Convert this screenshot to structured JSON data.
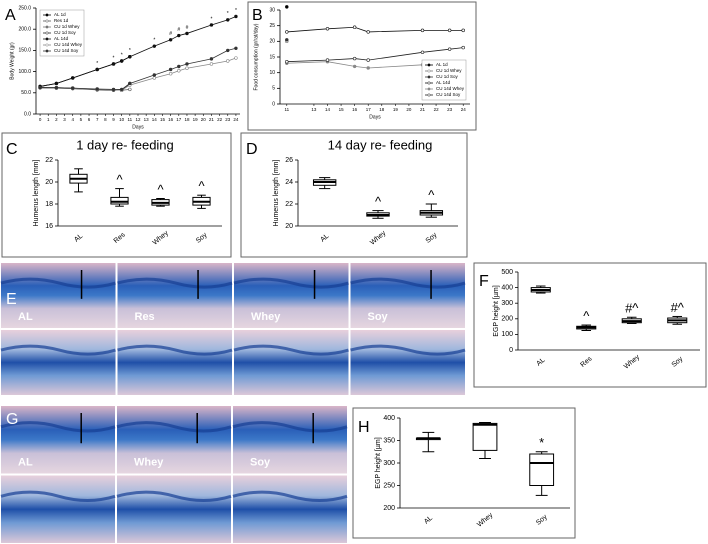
{
  "chart_data": [
    {
      "type": "line",
      "panel": "A",
      "ylabel": "Body Weight (gr)",
      "xlabel": "Days",
      "x": [
        0,
        2,
        4,
        7,
        9,
        10,
        11,
        14,
        16,
        17,
        18,
        21,
        23,
        24
      ],
      "xlim": [
        -0.5,
        24.5
      ],
      "xticks": [
        0,
        1,
        2,
        3,
        4,
        5,
        6,
        7,
        8,
        9,
        10,
        11,
        12,
        13,
        14,
        15,
        16,
        17,
        18,
        19,
        20,
        21,
        22,
        23,
        24
      ],
      "ylim": [
        0,
        250
      ],
      "yticks": [
        {
          "value": 0,
          "label": "0.0"
        },
        {
          "value": 50,
          "label": "50.0"
        },
        {
          "value": 100,
          "label": "100.0"
        },
        {
          "value": 150,
          "label": "150.0"
        },
        {
          "value": 200,
          "label": "200.0"
        },
        {
          "value": 250,
          "label": "250.0"
        }
      ],
      "legend": "upper left",
      "annotations": [
        null,
        null,
        null,
        "*",
        "*",
        "*",
        "*",
        "*",
        "#",
        "#",
        "#",
        "*",
        "*",
        "*"
      ],
      "series": [
        {
          "name": "AL 1d",
          "color": "#000000",
          "values": [
            65,
            72,
            85,
            105,
            118,
            125,
            135,
            null,
            null,
            null,
            null,
            null,
            null,
            null
          ]
        },
        {
          "name": "Res 1d",
          "color": "#555555",
          "values": [
            63,
            62,
            61,
            58,
            57,
            56,
            58,
            null,
            null,
            null,
            null,
            null,
            null,
            null
          ]
        },
        {
          "name": "CU 1d Whey",
          "color": "#777777",
          "values": [
            62,
            62,
            60,
            58,
            57,
            56,
            70,
            null,
            null,
            null,
            null,
            null,
            null,
            null
          ]
        },
        {
          "name": "CU 1d Soy",
          "color": "#222222",
          "values": [
            62,
            61,
            60,
            57,
            56,
            57,
            72,
            null,
            null,
            null,
            null,
            null,
            null,
            null
          ]
        },
        {
          "name": "AL 14d",
          "color": "#111111",
          "values": [
            65,
            72,
            85,
            105,
            118,
            125,
            135,
            160,
            175,
            185,
            190,
            210,
            222,
            230
          ]
        },
        {
          "name": "CU 14d Whey",
          "color": "#888888",
          "values": [
            62,
            61,
            60,
            58,
            57,
            56,
            68,
            85,
            95,
            102,
            108,
            118,
            125,
            132
          ]
        },
        {
          "name": "CU 14d Soy",
          "color": "#333333",
          "values": [
            62,
            62,
            61,
            59,
            58,
            58,
            72,
            92,
            105,
            112,
            118,
            130,
            150,
            155
          ]
        }
      ]
    },
    {
      "type": "line",
      "panel": "B",
      "ylabel": "Food consumption (gr/rat/day)",
      "xlabel": "Days",
      "x": [
        11,
        14,
        16,
        17,
        21,
        23,
        24
      ],
      "xlim": [
        10.5,
        24.5
      ],
      "xticks": [
        11,
        13,
        14,
        15,
        16,
        17,
        18,
        19,
        20,
        21,
        22,
        23,
        24
      ],
      "ylim": [
        0,
        30
      ],
      "yticks": [
        0,
        5,
        10,
        15,
        20,
        25,
        30
      ],
      "legend": "lower right",
      "series": [
        {
          "name": "AL 1d",
          "color": "#000000",
          "values": [
            31,
            null,
            null,
            null,
            null,
            null,
            null
          ]
        },
        {
          "name": "CU 1d Whey",
          "color": "#777777",
          "values": [
            20,
            null,
            null,
            null,
            null,
            null,
            null
          ]
        },
        {
          "name": "CU 1d Soy",
          "color": "#333333",
          "values": [
            20.5,
            null,
            null,
            null,
            null,
            null,
            null
          ]
        },
        {
          "name": "AL 14d",
          "color": "#111111",
          "values": [
            23,
            24,
            24.5,
            23,
            23.5,
            23.5,
            23.5
          ]
        },
        {
          "name": "CU 14d Whey",
          "color": "#888888",
          "values": [
            13,
            13.5,
            12,
            11.5,
            12.5,
            12.5,
            13.5
          ]
        },
        {
          "name": "CU 14d Soy",
          "color": "#222222",
          "values": [
            13.5,
            14,
            14.5,
            14,
            16.5,
            17.5,
            18
          ]
        }
      ]
    },
    {
      "type": "box",
      "panel": "C",
      "title": "1 day re- feeding",
      "ylabel": "Humerus length [mm]",
      "categories": [
        "AL",
        "Res",
        "Whey",
        "Soy"
      ],
      "ylim": [
        16,
        22
      ],
      "yticks": [
        16,
        18,
        20,
        22
      ],
      "annotations": [
        null,
        "^",
        "^",
        "^"
      ],
      "boxes": [
        {
          "min": 19.1,
          "q1": 19.9,
          "median": 20.3,
          "q3": 20.7,
          "max": 21.2
        },
        {
          "min": 17.8,
          "q1": 18.0,
          "median": 18.2,
          "q3": 18.6,
          "max": 19.4
        },
        {
          "min": 17.8,
          "q1": 17.9,
          "median": 18.1,
          "q3": 18.4,
          "max": 18.5
        },
        {
          "min": 17.6,
          "q1": 17.9,
          "median": 18.2,
          "q3": 18.6,
          "max": 18.8
        }
      ]
    },
    {
      "type": "box",
      "panel": "D",
      "title": "14 day re- feeding",
      "ylabel": "Humerus length [mm]",
      "categories": [
        "AL",
        "Whey",
        "Soy"
      ],
      "ylim": [
        20,
        26
      ],
      "yticks": [
        20,
        22,
        24,
        26
      ],
      "annotations": [
        null,
        "^",
        "^"
      ],
      "boxes": [
        {
          "min": 23.4,
          "q1": 23.7,
          "median": 24.0,
          "q3": 24.2,
          "max": 24.4
        },
        {
          "min": 20.7,
          "q1": 20.9,
          "median": 21.0,
          "q3": 21.2,
          "max": 21.4
        },
        {
          "min": 20.8,
          "q1": 21.0,
          "median": 21.2,
          "q3": 21.4,
          "max": 22.0
        }
      ]
    },
    {
      "type": "box",
      "panel": "F",
      "ylabel": "EGP height [µm]",
      "categories": [
        "AL",
        "Res",
        "Whey",
        "Soy"
      ],
      "ylim": [
        0,
        500
      ],
      "yticks": [
        0,
        100,
        200,
        300,
        400,
        500
      ],
      "annotations": [
        null,
        "^",
        "#^",
        "#^"
      ],
      "boxes": [
        {
          "min": 365,
          "q1": 372,
          "median": 385,
          "q3": 400,
          "max": 410
        },
        {
          "min": 125,
          "q1": 135,
          "median": 145,
          "q3": 152,
          "max": 160
        },
        {
          "min": 170,
          "q1": 175,
          "median": 185,
          "q3": 200,
          "max": 210
        },
        {
          "min": 165,
          "q1": 175,
          "median": 190,
          "q3": 205,
          "max": 215
        }
      ]
    },
    {
      "type": "box",
      "panel": "H",
      "ylabel": "EGP height [µm]",
      "categories": [
        "AL",
        "Whey",
        "Soy"
      ],
      "ylim": [
        200,
        400
      ],
      "yticks": [
        200,
        250,
        300,
        350,
        400
      ],
      "annotations": [
        null,
        null,
        "*"
      ],
      "boxes": [
        {
          "min": 325,
          "q1": 352,
          "median": 355,
          "q3": 355,
          "max": 368
        },
        {
          "min": 310,
          "q1": 328,
          "median": 385,
          "q3": 388,
          "max": 390
        },
        {
          "min": 228,
          "q1": 250,
          "median": 300,
          "q3": 320,
          "max": 325
        }
      ]
    }
  ],
  "figures": [
    {
      "label": "E",
      "columns": [
        "AL",
        "Res",
        "Whey",
        "Soy"
      ]
    },
    {
      "label": "G",
      "columns": [
        "AL",
        "Whey",
        "Soy"
      ]
    }
  ]
}
